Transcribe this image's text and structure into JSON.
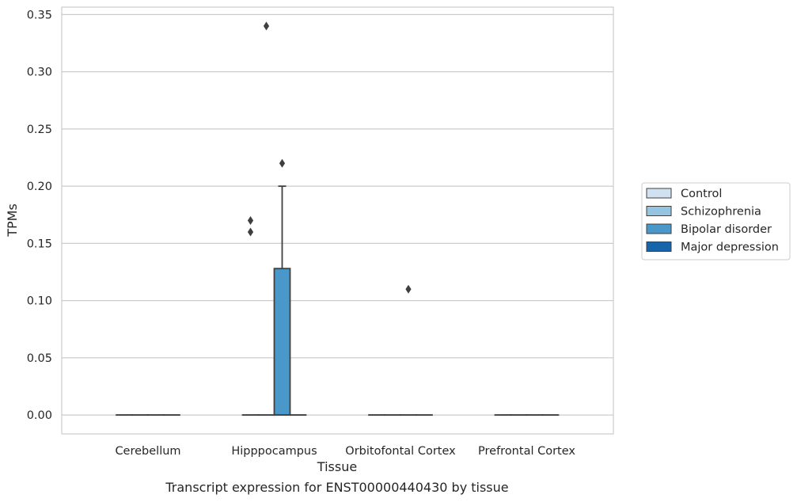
{
  "chart_data": {
    "type": "box",
    "xlabel": "Tissue",
    "ylabel": "TPMs",
    "caption": "Transcript expression for ENST00000440430 by tissue",
    "categories": [
      "Cerebellum",
      "Hipppocampus",
      "Orbitofontal Cortex",
      "Prefrontal Cortex"
    ],
    "ylim": [
      -0.0165,
      0.3565
    ],
    "yticks": [
      0.0,
      0.05,
      0.1,
      0.15,
      0.2,
      0.25,
      0.3,
      0.35
    ],
    "ytick_labels": [
      "0.00",
      "0.05",
      "0.10",
      "0.15",
      "0.20",
      "0.25",
      "0.30",
      "0.35"
    ],
    "grid": true,
    "legend_position": "right",
    "series": [
      {
        "name": "Control",
        "color": "#d0e1f2",
        "boxes": [
          {
            "category": "Cerebellum",
            "q1": 0,
            "median": 0,
            "q3": 0,
            "whislo": 0,
            "whishi": 0,
            "fliers": []
          },
          {
            "category": "Hipppocampus",
            "q1": 0,
            "median": 0,
            "q3": 0,
            "whislo": 0,
            "whishi": 0,
            "fliers": [
              0.16,
              0.17
            ]
          },
          {
            "category": "Orbitofontal Cortex",
            "q1": 0,
            "median": 0,
            "q3": 0,
            "whislo": 0,
            "whishi": 0,
            "fliers": []
          },
          {
            "category": "Prefrontal Cortex",
            "q1": 0,
            "median": 0,
            "q3": 0,
            "whislo": 0,
            "whishi": 0,
            "fliers": []
          }
        ]
      },
      {
        "name": "Schizophrenia",
        "color": "#94c4df",
        "boxes": [
          {
            "category": "Cerebellum",
            "q1": 0,
            "median": 0,
            "q3": 0,
            "whislo": 0,
            "whishi": 0,
            "fliers": []
          },
          {
            "category": "Hipppocampus",
            "q1": 0,
            "median": 0,
            "q3": 0,
            "whislo": 0,
            "whishi": 0,
            "fliers": [
              0.34
            ]
          },
          {
            "category": "Orbitofontal Cortex",
            "q1": 0,
            "median": 0,
            "q3": 0,
            "whislo": 0,
            "whishi": 0,
            "fliers": []
          },
          {
            "category": "Prefrontal Cortex",
            "q1": 0,
            "median": 0,
            "q3": 0,
            "whislo": 0,
            "whishi": 0,
            "fliers": []
          }
        ]
      },
      {
        "name": "Bipolar disorder",
        "color": "#4a98c9",
        "boxes": [
          {
            "category": "Cerebellum",
            "q1": 0,
            "median": 0,
            "q3": 0,
            "whislo": 0,
            "whishi": 0,
            "fliers": []
          },
          {
            "category": "Hipppocampus",
            "q1": 0,
            "median": 0,
            "q3": 0.128,
            "whislo": 0,
            "whishi": 0.2,
            "fliers": [
              0.22
            ]
          },
          {
            "category": "Orbitofontal Cortex",
            "q1": 0,
            "median": 0,
            "q3": 0,
            "whislo": 0,
            "whishi": 0,
            "fliers": [
              0.11
            ]
          },
          {
            "category": "Prefrontal Cortex",
            "q1": 0,
            "median": 0,
            "q3": 0,
            "whislo": 0,
            "whishi": 0,
            "fliers": []
          }
        ]
      },
      {
        "name": "Major depression",
        "color": "#1764ab",
        "boxes": [
          {
            "category": "Cerebellum",
            "q1": 0,
            "median": 0,
            "q3": 0,
            "whislo": 0,
            "whishi": 0,
            "fliers": []
          },
          {
            "category": "Hipppocampus",
            "q1": 0,
            "median": 0,
            "q3": 0,
            "whislo": 0,
            "whishi": 0,
            "fliers": []
          },
          {
            "category": "Orbitofontal Cortex",
            "q1": 0,
            "median": 0,
            "q3": 0,
            "whislo": 0,
            "whishi": 0,
            "fliers": []
          },
          {
            "category": "Prefrontal Cortex",
            "q1": 0,
            "median": 0,
            "q3": 0,
            "whislo": 0,
            "whishi": 0,
            "fliers": []
          }
        ]
      }
    ]
  }
}
